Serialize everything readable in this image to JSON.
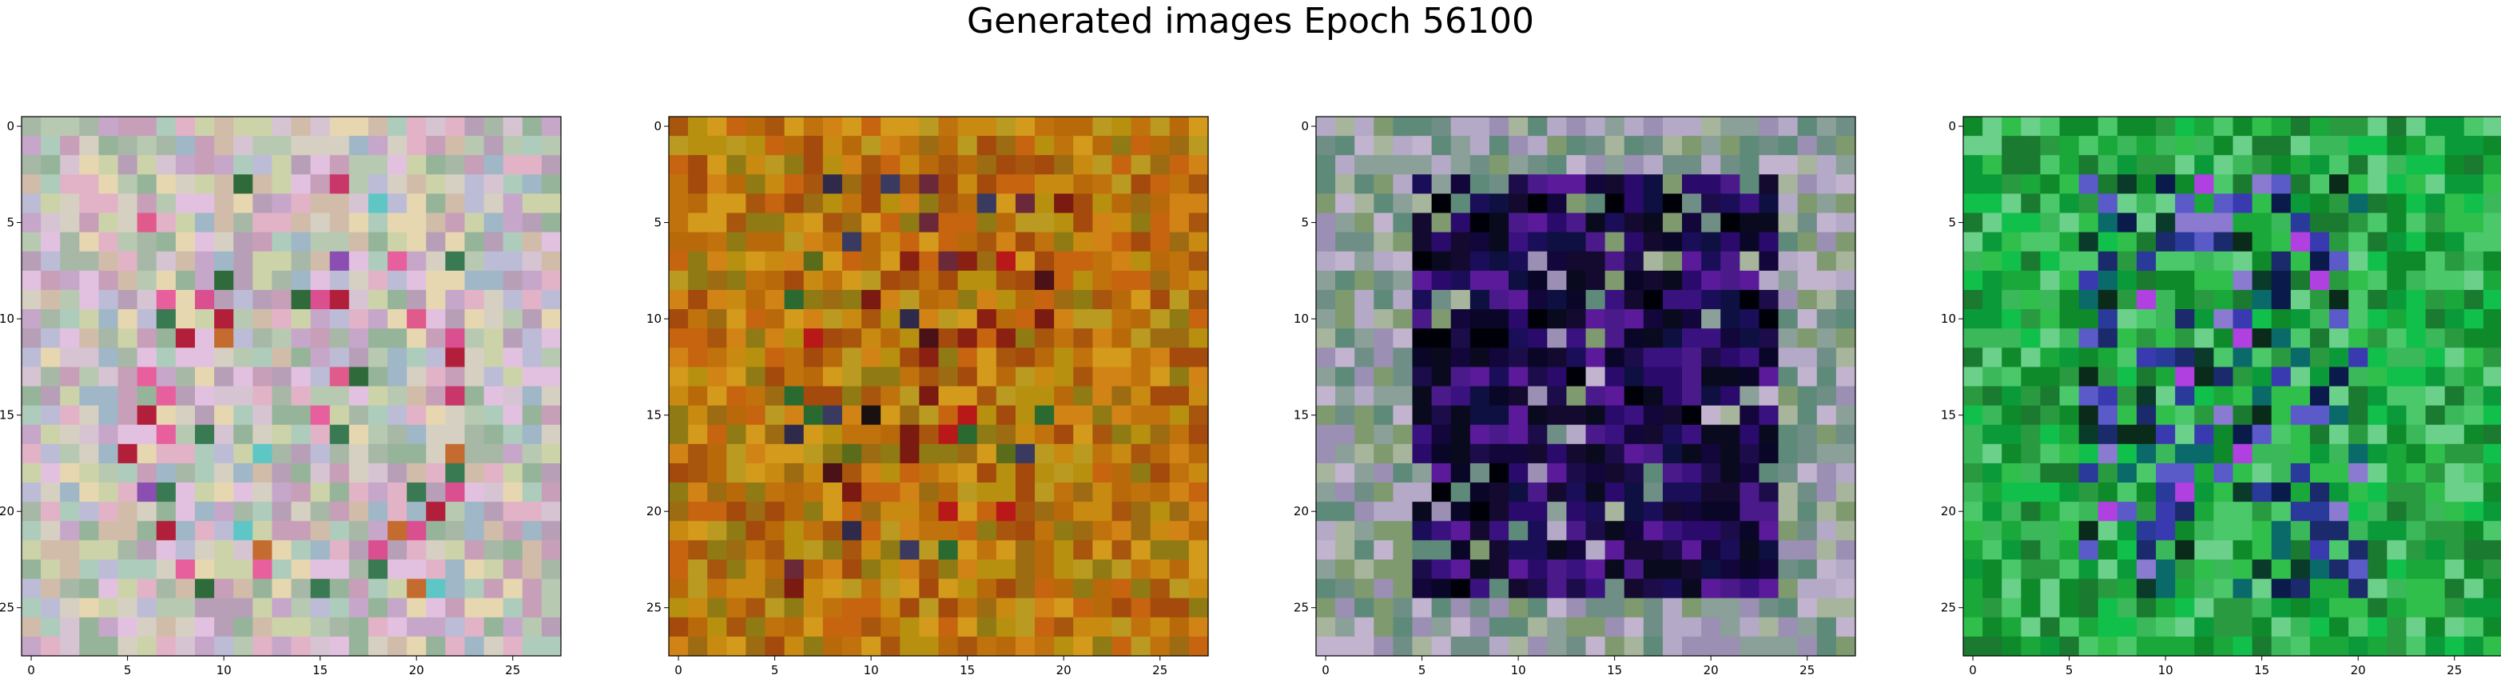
{
  "figure_title": "Generated images Epoch 56100",
  "chart_data": [
    {
      "type": "heatmap",
      "grid_size": [
        28,
        28
      ],
      "x_ticks": [
        "0",
        "5",
        "10",
        "15",
        "20",
        "25"
      ],
      "y_ticks": [
        "0",
        "5",
        "10",
        "15",
        "20",
        "25"
      ],
      "xlim": [
        -0.5,
        27.5
      ],
      "ylim": [
        27.5,
        -0.5
      ],
      "palette": [
        "#cdd3a9",
        "#b8c9b2",
        "#d7c4d3",
        "#a7b8a6",
        "#e2b3c7",
        "#c6a7c9",
        "#d6d0c2",
        "#9fb7c6",
        "#b7a0b7",
        "#e6d7b0",
        "#c89fb8",
        "#aeccbc",
        "#d1bcaa",
        "#bcbcd7",
        "#e2c1e0",
        "#96b499"
      ],
      "accent_palette": [
        "#c8366a",
        "#e05a8c",
        "#b21f3a",
        "#d94f8f",
        "#3a7a52",
        "#5fc6c6",
        "#c46b2f",
        "#8a4fb0",
        "#e7609d",
        "#2f6b3a"
      ],
      "accent_density": 0.16,
      "accent_region": [
        3,
        24,
        5,
        22
      ],
      "seed": 11
    },
    {
      "type": "heatmap",
      "grid_size": [
        28,
        28
      ],
      "x_ticks": [
        "0",
        "5",
        "10",
        "15",
        "20",
        "25"
      ],
      "y_ticks": [
        "0",
        "5",
        "10",
        "15",
        "20",
        "25"
      ],
      "xlim": [
        -0.5,
        27.5
      ],
      "ylim": [
        27.5,
        -0.5
      ],
      "palette": [
        "#b86a0a",
        "#c98a12",
        "#a8560e",
        "#d39a1c",
        "#9c6b12",
        "#c0720c",
        "#b8900f",
        "#a34a0c",
        "#d28315",
        "#8f7a14",
        "#c76410",
        "#ba9a20"
      ],
      "accent_palette": [
        "#7a1a10",
        "#4a1216",
        "#2f2a4a",
        "#1a1010",
        "#5a6b1a",
        "#8a2012",
        "#3a3a60",
        "#b81818",
        "#2a6a30",
        "#6a2838"
      ],
      "accent_density": 0.16,
      "accent_region": [
        3,
        24,
        6,
        20
      ],
      "seed": 23
    },
    {
      "type": "heatmap",
      "grid_size": [
        28,
        28
      ],
      "x_ticks": [
        "0",
        "5",
        "10",
        "15",
        "20",
        "25"
      ],
      "y_ticks": [
        "0",
        "5",
        "10",
        "15",
        "20",
        "25"
      ],
      "xlim": [
        -0.5,
        27.5
      ],
      "ylim": [
        27.5,
        -0.5
      ],
      "palette": [
        "#a7b59c",
        "#8aa098",
        "#b4a9c6",
        "#6f8f86",
        "#c2b4cf",
        "#7f9a6e",
        "#5e8a7a",
        "#9b8fb4"
      ],
      "accent_palette": [
        "#0a0a1e",
        "#140a30",
        "#1c0d4a",
        "#2a0a6a",
        "#0a0628",
        "#3a1280",
        "#12063a",
        "#4a1a8a",
        "#000008",
        "#1a0e58",
        "#5a1a9a",
        "#0d1040"
      ],
      "accent_density": 0.86,
      "accent_region": [
        3,
        24,
        5,
        23
      ],
      "seed": 37
    },
    {
      "type": "heatmap",
      "grid_size": [
        28,
        28
      ],
      "x_ticks": [
        "0",
        "5",
        "10",
        "15",
        "20",
        "25"
      ],
      "y_ticks": [
        "0",
        "5",
        "10",
        "15",
        "20",
        "25"
      ],
      "xlim": [
        -0.5,
        27.5
      ],
      "ylim": [
        27.5,
        -0.5
      ],
      "palette": [
        "#1aa83a",
        "#2fbf4a",
        "#0f8a2a",
        "#4ac86a",
        "#2a9a40",
        "#10c04a",
        "#6ad08a",
        "#1a7a30",
        "#3ab85a",
        "#0a9a3a"
      ],
      "accent_palette": [
        "#0a3a2a",
        "#2a3a9a",
        "#1a2a6a",
        "#0a6a6a",
        "#3a3ab0",
        "#0a2a1a",
        "#8a7ad0",
        "#5a5ac8",
        "#0a1a4a",
        "#b040e0"
      ],
      "accent_density": 0.42,
      "accent_region": [
        3,
        24,
        6,
        20
      ],
      "seed": 53
    }
  ]
}
